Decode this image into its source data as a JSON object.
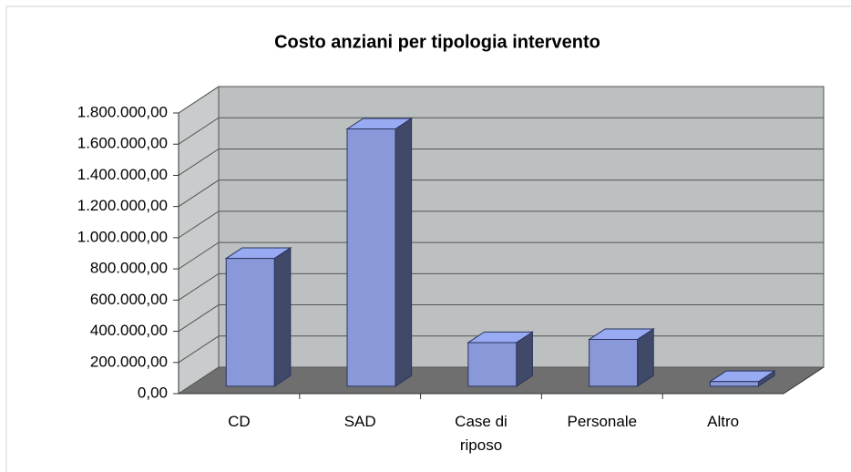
{
  "chart_data": {
    "type": "bar3d",
    "title": "Costo anziani per tipologia intervento",
    "categories": [
      "CD",
      "SAD",
      "Case di riposo",
      "Personale",
      "Altro"
    ],
    "values": [
      820000,
      1650000,
      280000,
      300000,
      30000
    ],
    "color": "#8898d8",
    "ylim": [
      0,
      1800000
    ],
    "yticks": [
      {
        "value": 0,
        "label": "0,00"
      },
      {
        "value": 200000,
        "label": "200.000,00"
      },
      {
        "value": 400000,
        "label": "400.000,00"
      },
      {
        "value": 600000,
        "label": "600.000,00"
      },
      {
        "value": 800000,
        "label": "800.000,00"
      },
      {
        "value": 1000000,
        "label": "1.000.000,00"
      },
      {
        "value": 1200000,
        "label": "1.200.000,00"
      },
      {
        "value": 1400000,
        "label": "1.400.000,00"
      },
      {
        "value": 1600000,
        "label": "1.600.000,00"
      },
      {
        "value": 1800000,
        "label": "1.800.000,00"
      }
    ],
    "grid": true
  }
}
